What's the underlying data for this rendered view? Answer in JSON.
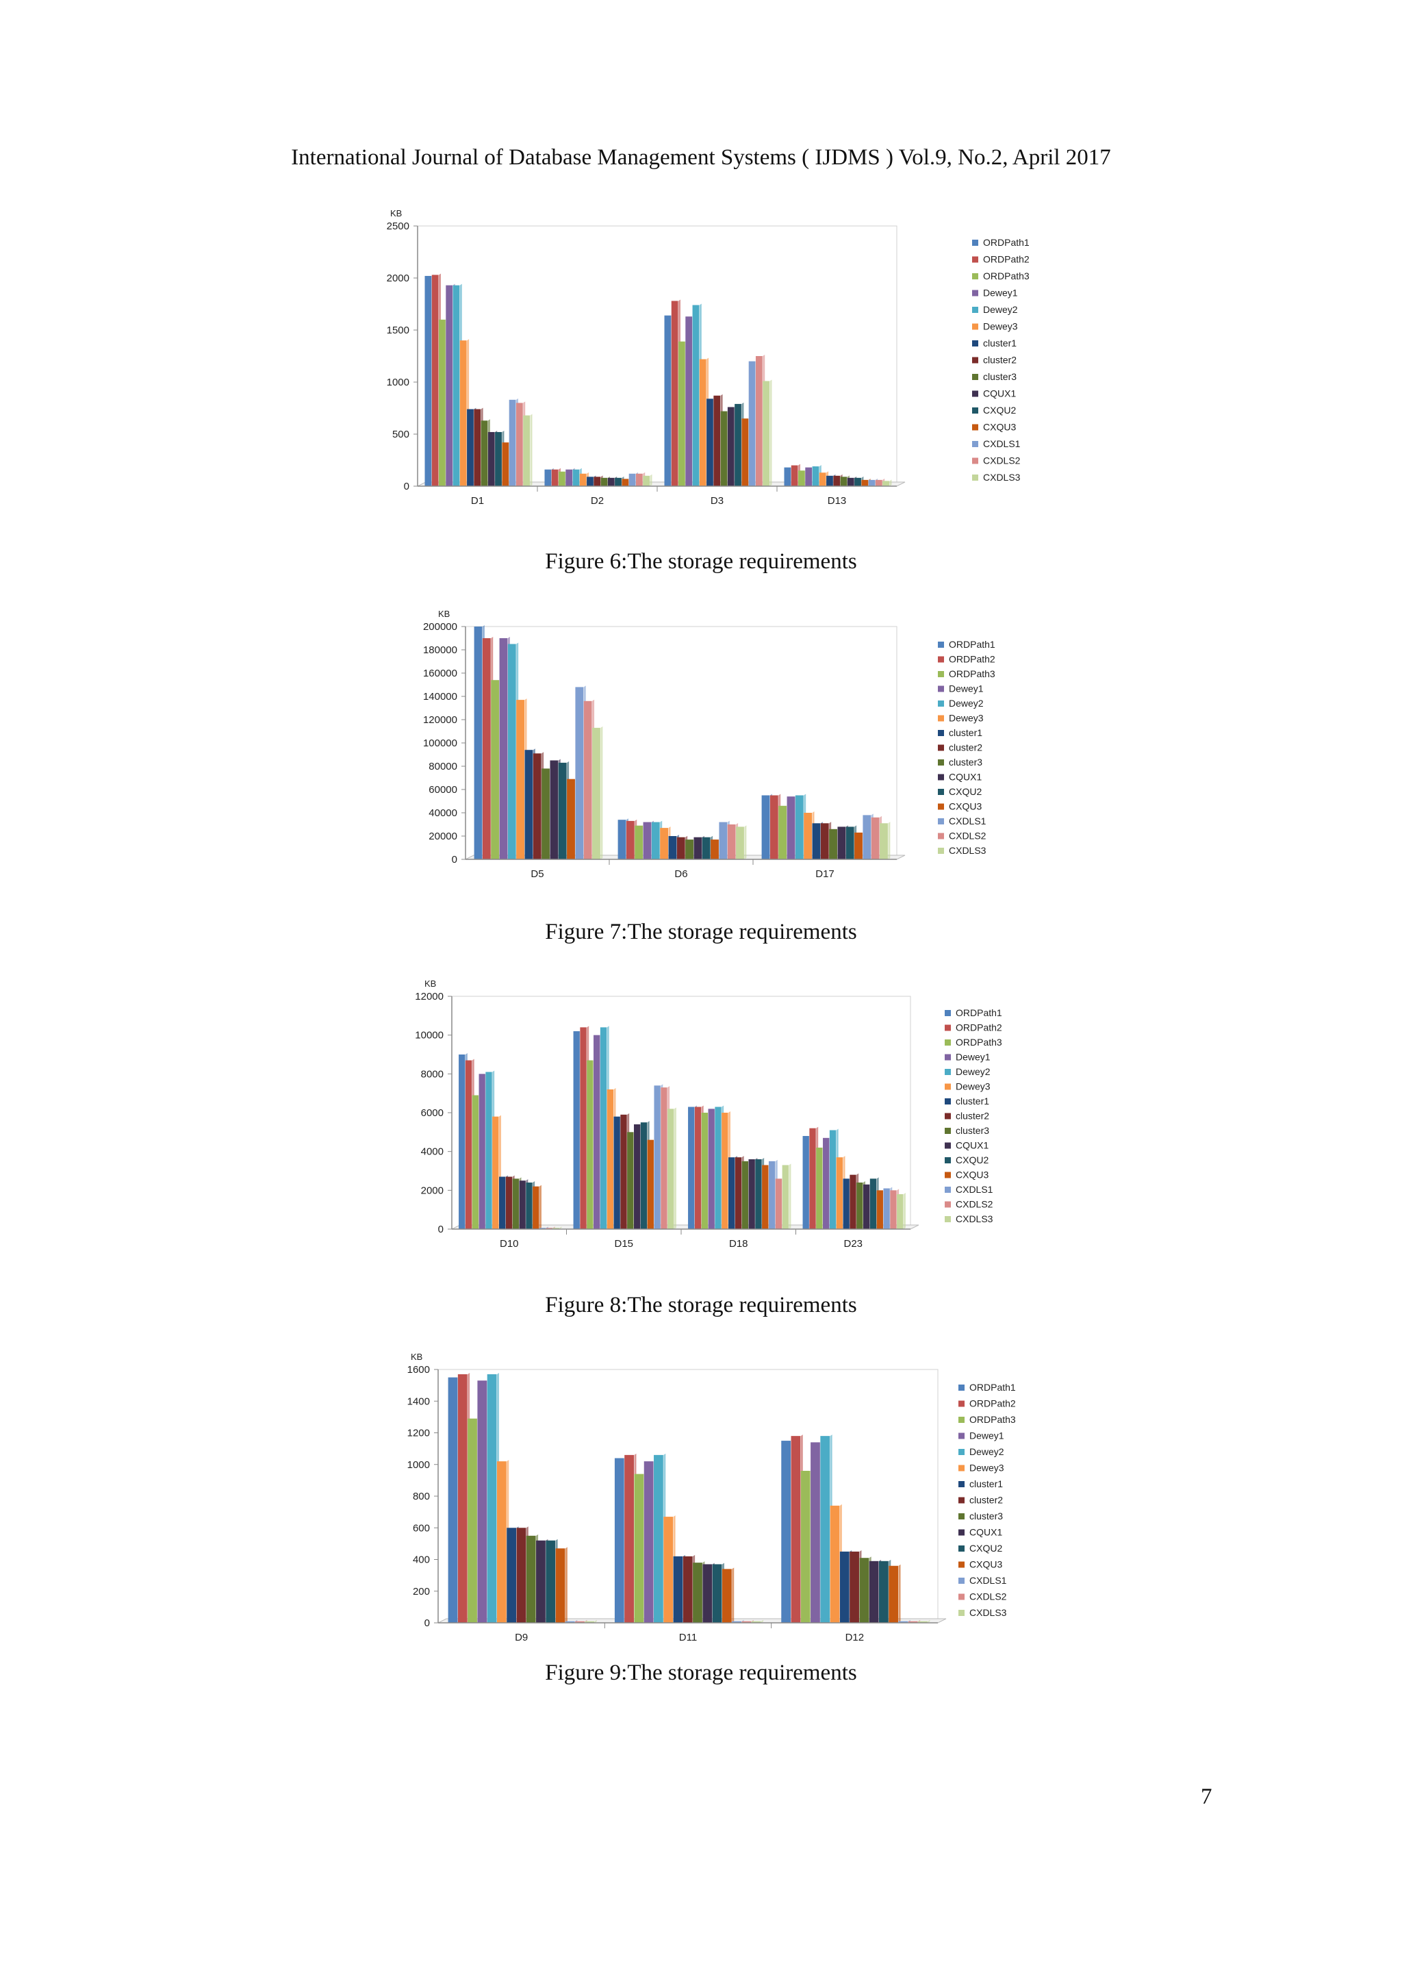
{
  "header": "International Journal of Database Management Systems ( IJDMS ) Vol.9, No.2, April 2017",
  "page_number": "7",
  "series_colors": [
    "#4F81BD",
    "#C0504D",
    "#9BBB59",
    "#8064A2",
    "#4BACC6",
    "#F79646",
    "#1F497D",
    "#7B2C2A",
    "#5F7530",
    "#3F3151",
    "#205867",
    "#C65911",
    "#7F9ED1",
    "#DA8A88",
    "#C3D69B"
  ],
  "chart_data": [
    {
      "type": "bar",
      "caption": "Figure 6:The storage requirements",
      "unit": "KB",
      "ylim": [
        0,
        2500
      ],
      "yticks": [
        "0",
        "500",
        "1000",
        "1500",
        "2000",
        "2500"
      ],
      "categories": [
        "D1",
        "D2",
        "D3",
        "D13"
      ],
      "series": [
        {
          "name": "ORDPath1",
          "values": [
            2020,
            160,
            1640,
            180
          ]
        },
        {
          "name": "ORDPath2",
          "values": [
            2030,
            160,
            1780,
            200
          ]
        },
        {
          "name": "ORDPath3",
          "values": [
            1600,
            140,
            1390,
            150
          ]
        },
        {
          "name": "Dewey1",
          "values": [
            1930,
            160,
            1630,
            180
          ]
        },
        {
          "name": "Dewey2",
          "values": [
            1930,
            160,
            1740,
            190
          ]
        },
        {
          "name": "Dewey3",
          "values": [
            1400,
            120,
            1220,
            130
          ]
        },
        {
          "name": "cluster1",
          "values": [
            740,
            90,
            840,
            100
          ]
        },
        {
          "name": "cluster2",
          "values": [
            740,
            90,
            870,
            100
          ]
        },
        {
          "name": "cluster3",
          "values": [
            630,
            80,
            720,
            90
          ]
        },
        {
          "name": "CQUX1",
          "values": [
            520,
            80,
            760,
            80
          ]
        },
        {
          "name": "CXQU2",
          "values": [
            520,
            80,
            790,
            80
          ]
        },
        {
          "name": "CXQU3",
          "values": [
            420,
            70,
            650,
            60
          ]
        },
        {
          "name": "CXDLS1",
          "values": [
            830,
            120,
            1200,
            60
          ]
        },
        {
          "name": "CXDLS2",
          "values": [
            800,
            120,
            1250,
            60
          ]
        },
        {
          "name": "CXDLS3",
          "values": [
            680,
            100,
            1010,
            50
          ]
        }
      ]
    },
    {
      "type": "bar",
      "caption": "Figure 7:The storage requirements",
      "unit": "KB",
      "ylim": [
        0,
        200000
      ],
      "yticks": [
        "0",
        "20000",
        "40000",
        "60000",
        "80000",
        "100000",
        "120000",
        "140000",
        "160000",
        "180000",
        "200000"
      ],
      "categories": [
        "D5",
        "D6",
        "D17"
      ],
      "series": [
        {
          "name": "ORDPath1",
          "values": [
            200000,
            34000,
            55000
          ]
        },
        {
          "name": "ORDPath2",
          "values": [
            190000,
            33000,
            55000
          ]
        },
        {
          "name": "ORDPath3",
          "values": [
            154000,
            29000,
            46000
          ]
        },
        {
          "name": "Dewey1",
          "values": [
            190000,
            32000,
            54000
          ]
        },
        {
          "name": "Dewey2",
          "values": [
            185000,
            32000,
            55000
          ]
        },
        {
          "name": "Dewey3",
          "values": [
            137000,
            27000,
            40000
          ]
        },
        {
          "name": "cluster1",
          "values": [
            94000,
            20000,
            31000
          ]
        },
        {
          "name": "cluster2",
          "values": [
            91000,
            19000,
            31000
          ]
        },
        {
          "name": "cluster3",
          "values": [
            78000,
            17000,
            26000
          ]
        },
        {
          "name": "CQUX1",
          "values": [
            85000,
            19000,
            28000
          ]
        },
        {
          "name": "CXQU2",
          "values": [
            83000,
            19000,
            28000
          ]
        },
        {
          "name": "CXQU3",
          "values": [
            69000,
            17000,
            23000
          ]
        },
        {
          "name": "CXDLS1",
          "values": [
            148000,
            32000,
            38000
          ]
        },
        {
          "name": "CXDLS2",
          "values": [
            136000,
            30000,
            36000
          ]
        },
        {
          "name": "CXDLS3",
          "values": [
            113000,
            28000,
            31000
          ]
        }
      ]
    },
    {
      "type": "bar",
      "caption": "Figure 8:The storage requirements",
      "unit": "KB",
      "ylim": [
        0,
        12000
      ],
      "yticks": [
        "0",
        "2000",
        "4000",
        "6000",
        "8000",
        "10000",
        "12000"
      ],
      "categories": [
        "D10",
        "D15",
        "D18",
        "D23"
      ],
      "series": [
        {
          "name": "ORDPath1",
          "values": [
            9000,
            10200,
            6300,
            4800
          ]
        },
        {
          "name": "ORDPath2",
          "values": [
            8700,
            10400,
            6300,
            5200
          ]
        },
        {
          "name": "ORDPath3",
          "values": [
            6900,
            8700,
            6000,
            4200
          ]
        },
        {
          "name": "Dewey1",
          "values": [
            8000,
            10000,
            6200,
            4700
          ]
        },
        {
          "name": "Dewey2",
          "values": [
            8100,
            10400,
            6300,
            5100
          ]
        },
        {
          "name": "Dewey3",
          "values": [
            5800,
            7200,
            6000,
            3700
          ]
        },
        {
          "name": "cluster1",
          "values": [
            2700,
            5800,
            3700,
            2600
          ]
        },
        {
          "name": "cluster2",
          "values": [
            2700,
            5900,
            3700,
            2800
          ]
        },
        {
          "name": "cluster3",
          "values": [
            2600,
            5000,
            3500,
            2400
          ]
        },
        {
          "name": "CQUX1",
          "values": [
            2500,
            5400,
            3600,
            2300
          ]
        },
        {
          "name": "CXQU2",
          "values": [
            2400,
            5500,
            3600,
            2600
          ]
        },
        {
          "name": "CXQU3",
          "values": [
            2200,
            4600,
            3300,
            2000
          ]
        },
        {
          "name": "CXDLS1",
          "values": [
            60,
            7400,
            3500,
            2100
          ]
        },
        {
          "name": "CXDLS2",
          "values": [
            60,
            7300,
            2600,
            2000
          ]
        },
        {
          "name": "CXDLS3",
          "values": [
            60,
            6200,
            3300,
            1800
          ]
        }
      ]
    },
    {
      "type": "bar",
      "caption": "Figure 9:The storage requirements",
      "unit": "KB",
      "ylim": [
        0,
        1600
      ],
      "yticks": [
        "0",
        "200",
        "400",
        "600",
        "800",
        "1000",
        "1200",
        "1400",
        "1600"
      ],
      "categories": [
        "D9",
        "D11",
        "D12"
      ],
      "series": [
        {
          "name": "ORDPath1",
          "values": [
            1550,
            1040,
            1150
          ]
        },
        {
          "name": "ORDPath2",
          "values": [
            1570,
            1060,
            1180
          ]
        },
        {
          "name": "ORDPath3",
          "values": [
            1290,
            940,
            960
          ]
        },
        {
          "name": "Dewey1",
          "values": [
            1530,
            1020,
            1140
          ]
        },
        {
          "name": "Dewey2",
          "values": [
            1570,
            1060,
            1180
          ]
        },
        {
          "name": "Dewey3",
          "values": [
            1020,
            670,
            740
          ]
        },
        {
          "name": "cluster1",
          "values": [
            600,
            420,
            450
          ]
        },
        {
          "name": "cluster2",
          "values": [
            600,
            420,
            450
          ]
        },
        {
          "name": "cluster3",
          "values": [
            550,
            380,
            410
          ]
        },
        {
          "name": "CQUX1",
          "values": [
            520,
            370,
            390
          ]
        },
        {
          "name": "CXQU2",
          "values": [
            520,
            370,
            390
          ]
        },
        {
          "name": "CXQU3",
          "values": [
            470,
            340,
            360
          ]
        },
        {
          "name": "CXDLS1",
          "values": [
            10,
            10,
            10
          ]
        },
        {
          "name": "CXDLS2",
          "values": [
            10,
            10,
            10
          ]
        },
        {
          "name": "CXDLS3",
          "values": [
            10,
            10,
            10
          ]
        }
      ]
    }
  ]
}
